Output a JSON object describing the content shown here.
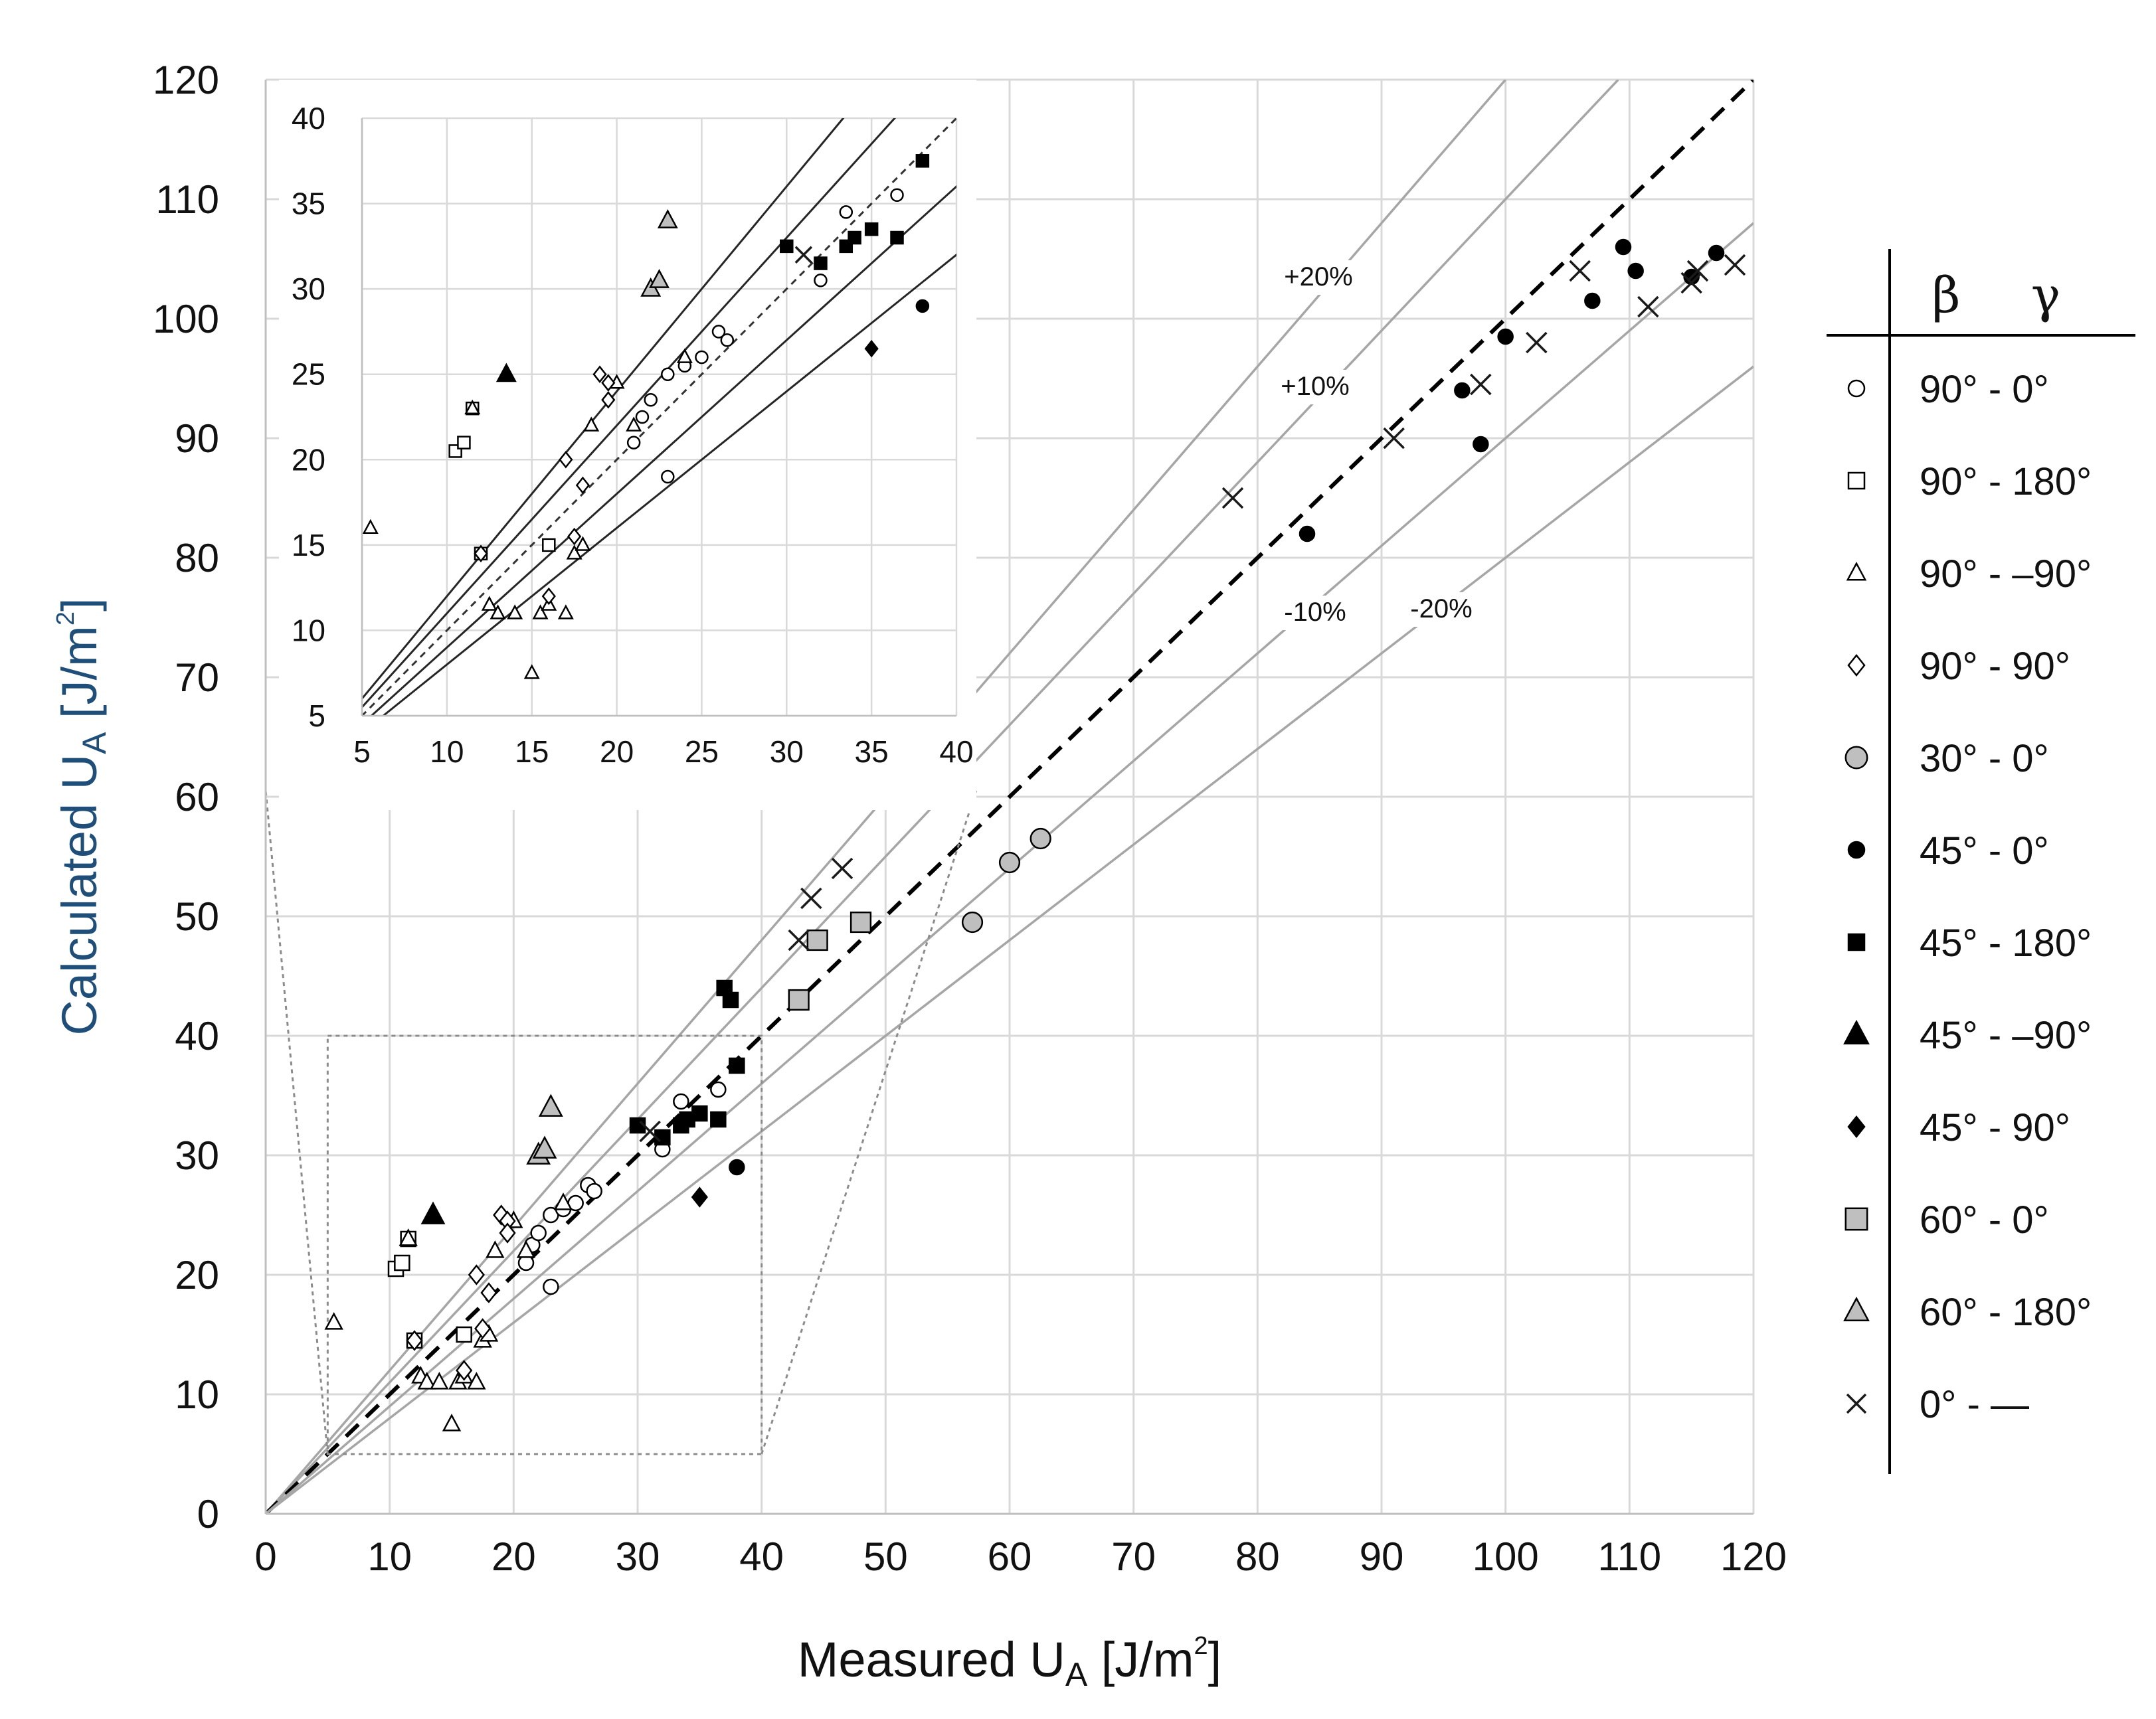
{
  "chart_data": {
    "type": "scatter",
    "xlabel": "Measured U",
    "ylabel": "Calculated U",
    "label_subscript": "A",
    "unit": "[J/m",
    "unit_sup": "2",
    "unit_close": "]",
    "xlim": [
      0,
      120
    ],
    "ylim": [
      0,
      120
    ],
    "xticks": [
      "0",
      "10",
      "20",
      "30",
      "40",
      "50",
      "60",
      "70",
      "80",
      "90",
      "100",
      "110",
      "120"
    ],
    "yticks": [
      "0",
      "10",
      "20",
      "30",
      "40",
      "50",
      "60",
      "70",
      "80",
      "90",
      "100",
      "110",
      "120"
    ],
    "grid": true,
    "reference_lines": [
      {
        "label": "+20%",
        "slope": 1.2
      },
      {
        "label": "+10%",
        "slope": 1.1
      },
      {
        "label": "",
        "slope": 1.0,
        "style": "dashed"
      },
      {
        "label": "-10%",
        "slope": 0.9
      },
      {
        "label": "-20%",
        "slope": 0.8
      }
    ],
    "zoom_box": {
      "xlim": [
        5,
        40
      ],
      "ylim": [
        5,
        40
      ]
    },
    "inset": {
      "xlim": [
        5,
        40
      ],
      "ylim": [
        5,
        40
      ],
      "xticks": [
        "5",
        "10",
        "15",
        "20",
        "25",
        "30",
        "35",
        "40"
      ],
      "yticks": [
        "5",
        "10",
        "15",
        "20",
        "25",
        "30",
        "35",
        "40"
      ]
    },
    "legend": {
      "placement": "right",
      "header": [
        "β",
        "γ"
      ],
      "entries": [
        "90° - 0°",
        "90° - 180°",
        "90° - –90°",
        "90° - 90°",
        "30° - 0°",
        "45° - 0°",
        "45° - 180°",
        "45° - –90°",
        "45° - 90°",
        "60° - 0°",
        "60° - 180°",
        "0° -   —"
      ]
    },
    "series": [
      {
        "name": "90° - 0°",
        "marker": "circle",
        "fill": "#ffffff",
        "size": "small",
        "points": [
          [
            21,
            21
          ],
          [
            21.5,
            22.5
          ],
          [
            22,
            23.5
          ],
          [
            23,
            25
          ],
          [
            24,
            25.5
          ],
          [
            25,
            26
          ],
          [
            26,
            27.5
          ],
          [
            26.5,
            27
          ],
          [
            23,
            19
          ],
          [
            32,
            30.5
          ],
          [
            33.5,
            34.5
          ],
          [
            36.5,
            35.5
          ]
        ]
      },
      {
        "name": "90° - 180°",
        "marker": "square",
        "fill": "#ffffff",
        "size": "small",
        "points": [
          [
            10.5,
            20.5
          ],
          [
            11,
            21
          ],
          [
            11.5,
            23
          ],
          [
            12,
            14.5
          ],
          [
            16,
            15
          ]
        ]
      },
      {
        "name": "90° - –90°",
        "marker": "triangle",
        "fill": "#ffffff",
        "size": "small",
        "points": [
          [
            5.5,
            16
          ],
          [
            11.5,
            23
          ],
          [
            12.5,
            11.5
          ],
          [
            13,
            11
          ],
          [
            14,
            11
          ],
          [
            15,
            7.5
          ],
          [
            15.5,
            11
          ],
          [
            16,
            11.5
          ],
          [
            17,
            11
          ],
          [
            17.5,
            14.5
          ],
          [
            18,
            15
          ],
          [
            18.5,
            22
          ],
          [
            20,
            24.5
          ],
          [
            21,
            22
          ],
          [
            24,
            26
          ]
        ]
      },
      {
        "name": "90° - 90°",
        "marker": "diamond",
        "fill": "#ffffff",
        "size": "small",
        "points": [
          [
            12,
            14.5
          ],
          [
            16,
            12
          ],
          [
            17,
            20
          ],
          [
            17.5,
            15.5
          ],
          [
            18,
            18.5
          ],
          [
            19,
            25
          ],
          [
            19.5,
            24.5
          ],
          [
            19.5,
            23.5
          ]
        ]
      },
      {
        "name": "30° - 0°",
        "marker": "circle",
        "fill": "#bfbfbf",
        "size": "large",
        "points": [
          [
            57,
            49.5
          ],
          [
            60,
            54.5
          ],
          [
            62.5,
            56.5
          ]
        ]
      },
      {
        "name": "45° - 0°",
        "marker": "circle",
        "fill": "#000000",
        "size": "small",
        "points": [
          [
            38,
            29
          ],
          [
            84,
            82
          ],
          [
            96.5,
            94
          ],
          [
            98,
            89.5
          ],
          [
            100,
            98.5
          ],
          [
            107,
            101.5
          ],
          [
            109.5,
            106
          ],
          [
            110.5,
            104
          ],
          [
            115,
            103.5
          ],
          [
            117,
            105.5
          ]
        ]
      },
      {
        "name": "45° - 180°",
        "marker": "square",
        "fill": "#000000",
        "size": "small",
        "points": [
          [
            30,
            32.5
          ],
          [
            32,
            31.5
          ],
          [
            33.5,
            32.5
          ],
          [
            34,
            33
          ],
          [
            35,
            33.5
          ],
          [
            36.5,
            33
          ],
          [
            37,
            44
          ],
          [
            38,
            37.5
          ],
          [
            37.5,
            43
          ]
        ]
      },
      {
        "name": "45° - –90°",
        "marker": "triangle",
        "fill": "#000000",
        "size": "large",
        "points": [
          [
            13.5,
            25
          ]
        ]
      },
      {
        "name": "45° - 90°",
        "marker": "diamond",
        "fill": "#000000",
        "size": "small",
        "points": [
          [
            35,
            26.5
          ]
        ]
      },
      {
        "name": "60° - 0°",
        "marker": "square",
        "fill": "#bfbfbf",
        "size": "large",
        "points": [
          [
            43,
            43
          ],
          [
            44.5,
            48
          ],
          [
            48,
            49.5
          ]
        ]
      },
      {
        "name": "60° - 180°",
        "marker": "triangle",
        "fill": "#bfbfbf",
        "size": "large",
        "points": [
          [
            22,
            30
          ],
          [
            22.5,
            30.5
          ],
          [
            23,
            34
          ]
        ]
      },
      {
        "name": "0° -   —",
        "marker": "x",
        "fill": "none",
        "size": "small",
        "points": [
          [
            31,
            32
          ],
          [
            43,
            48
          ],
          [
            44,
            51.5
          ],
          [
            46.5,
            54
          ],
          [
            78,
            85
          ],
          [
            91,
            90
          ],
          [
            98,
            94.5
          ],
          [
            102.5,
            98
          ],
          [
            106,
            104
          ],
          [
            111.5,
            101
          ],
          [
            115,
            103
          ],
          [
            115.5,
            104
          ],
          [
            118.5,
            104.5
          ]
        ]
      }
    ]
  }
}
